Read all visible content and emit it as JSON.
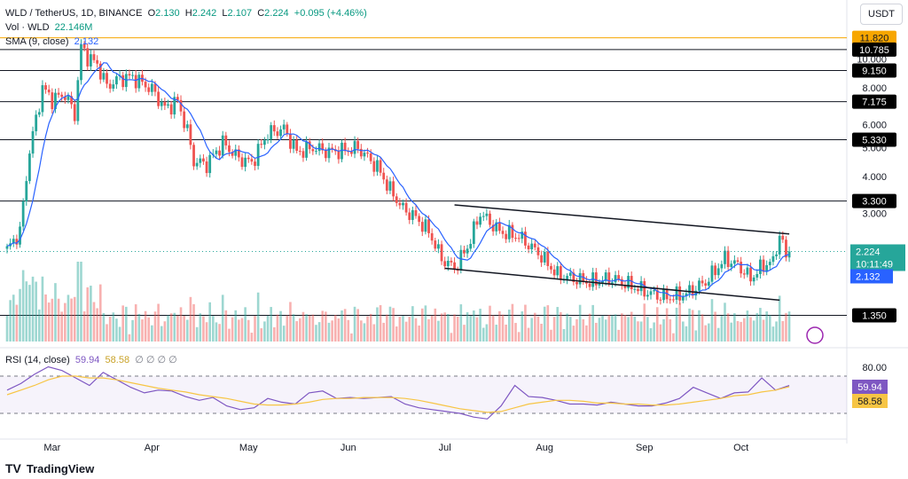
{
  "header": {
    "symbol": "WLD / TetherUS, 1D, BINANCE",
    "open_label": "O",
    "open": "2.130",
    "high_label": "H",
    "high": "2.242",
    "low_label": "L",
    "low": "2.107",
    "close_label": "C",
    "close": "2.224",
    "change": "+0.095 (+4.46%)",
    "vol_label": "Vol · WLD",
    "vol": "22.146M",
    "sma_label": "SMA (9, close)",
    "sma": "2.132",
    "rsi_label": "RSI (14, close)",
    "rsi": "59.94",
    "rsi_ma": "58.58",
    "rsi_extra": "∅ ∅ ∅ ∅"
  },
  "currency_badge": "USDT",
  "footer": {
    "brand": "TradingView"
  },
  "colors": {
    "up": "#26a69a",
    "down": "#ef5350",
    "sma": "#2962ff",
    "rsi": "#7e57c2",
    "rsi_ma": "#f7c544",
    "line": "#131722",
    "orange": "#f7a600"
  },
  "chart_data": [
    {
      "type": "candlestick",
      "title": "WLD / TetherUS, 1D, BINANCE",
      "y_scale": "log",
      "y_ticks": [
        "3.000",
        "4.000",
        "5.000",
        "6.000",
        "8.000",
        "10.000"
      ],
      "x_ticks": [
        "Mar",
        "Apr",
        "May",
        "Jun",
        "Jul",
        "Aug",
        "Sep",
        "Oct"
      ],
      "horizontal_levels": [
        {
          "label": "11.820",
          "value": 11.82,
          "color": "#f7a600"
        },
        {
          "label": "10.785",
          "value": 10.785,
          "color": "#131722"
        },
        {
          "label": "9.150",
          "value": 9.15,
          "color": "#131722"
        },
        {
          "label": "7.175",
          "value": 7.175,
          "color": "#131722"
        },
        {
          "label": "5.330",
          "value": 5.33,
          "color": "#131722"
        },
        {
          "label": "3.300",
          "value": 3.3,
          "color": "#131722"
        },
        {
          "label": "1.350",
          "value": 1.35,
          "color": "#131722"
        }
      ],
      "price_labels": {
        "last": "2.224",
        "countdown": "10:11:49",
        "sma": "2.132"
      },
      "trendlines": [
        {
          "from": [
            "Jul 4",
            3.2
          ],
          "to": [
            "Oct 16",
            2.55
          ]
        },
        {
          "from": [
            "Jul 1",
            1.95
          ],
          "to": [
            "Oct 13",
            1.52
          ]
        }
      ],
      "closes": [
        {
          "date": "Feb 16",
          "close": 2.25
        },
        {
          "date": "Feb 20",
          "close": 2.6
        },
        {
          "date": "Feb 23",
          "close": 4.9
        },
        {
          "date": "Feb 27",
          "close": 8.0
        },
        {
          "date": "Mar 1",
          "close": 7.3
        },
        {
          "date": "Mar 5",
          "close": 7.6
        },
        {
          "date": "Mar 8",
          "close": 6.5
        },
        {
          "date": "Mar 10",
          "close": 11.0
        },
        {
          "date": "Mar 12",
          "close": 10.2
        },
        {
          "date": "Mar 15",
          "close": 9.6
        },
        {
          "date": "Mar 18",
          "close": 8.1
        },
        {
          "date": "Mar 22",
          "close": 8.6
        },
        {
          "date": "Mar 26",
          "close": 8.7
        },
        {
          "date": "Apr 1",
          "close": 7.9
        },
        {
          "date": "Apr 5",
          "close": 6.8
        },
        {
          "date": "Apr 9",
          "close": 7.2
        },
        {
          "date": "Apr 12",
          "close": 5.7
        },
        {
          "date": "Apr 14",
          "close": 4.5
        },
        {
          "date": "Apr 18",
          "close": 4.4
        },
        {
          "date": "Apr 23",
          "close": 5.2
        },
        {
          "date": "Apr 28",
          "close": 4.6
        },
        {
          "date": "May 2",
          "close": 4.45
        },
        {
          "date": "May 7",
          "close": 5.6
        },
        {
          "date": "May 12",
          "close": 5.8
        },
        {
          "date": "May 16",
          "close": 4.85
        },
        {
          "date": "May 21",
          "close": 5.0
        },
        {
          "date": "May 26",
          "close": 4.85
        },
        {
          "date": "May 31",
          "close": 4.9
        },
        {
          "date": "Jun 4",
          "close": 5.0
        },
        {
          "date": "Jun 10",
          "close": 4.3
        },
        {
          "date": "Jun 14",
          "close": 3.6
        },
        {
          "date": "Jun 18",
          "close": 3.1
        },
        {
          "date": "Jun 22",
          "close": 2.9
        },
        {
          "date": "Jun 26",
          "close": 2.6
        },
        {
          "date": "Jun 30",
          "close": 2.1
        },
        {
          "date": "Jul 4",
          "close": 1.95
        },
        {
          "date": "Jul 8",
          "close": 2.3
        },
        {
          "date": "Jul 12",
          "close": 3.0
        },
        {
          "date": "Jul 18",
          "close": 2.6
        },
        {
          "date": "Jul 24",
          "close": 2.5
        },
        {
          "date": "Jul 30",
          "close": 2.2
        },
        {
          "date": "Aug 5",
          "close": 1.85
        },
        {
          "date": "Aug 10",
          "close": 1.8
        },
        {
          "date": "Aug 15",
          "close": 1.75
        },
        {
          "date": "Aug 22",
          "close": 1.8
        },
        {
          "date": "Aug 28",
          "close": 1.7
        },
        {
          "date": "Sep 3",
          "close": 1.6
        },
        {
          "date": "Sep 8",
          "close": 1.55
        },
        {
          "date": "Sep 14",
          "close": 1.6
        },
        {
          "date": "Sep 20",
          "close": 1.75
        },
        {
          "date": "Sep 26",
          "close": 2.1
        },
        {
          "date": "Sep 30",
          "close": 2.0
        },
        {
          "date": "Oct 4",
          "close": 1.8
        },
        {
          "date": "Oct 8",
          "close": 2.0
        },
        {
          "date": "Oct 11",
          "close": 2.05
        },
        {
          "date": "Oct 13",
          "close": 2.55
        },
        {
          "date": "Oct 15",
          "close": 2.13
        },
        {
          "date": "Oct 16",
          "close": 2.224
        }
      ]
    },
    {
      "type": "line",
      "title": "RSI (14, close)",
      "y_ticks": [
        "80.00"
      ],
      "band": [
        30,
        70
      ],
      "series": [
        {
          "name": "RSI",
          "value_label": "59.94",
          "values": [
            55,
            62,
            72,
            80,
            76,
            68,
            60,
            74,
            66,
            58,
            52,
            55,
            54,
            48,
            44,
            47,
            38,
            34,
            36,
            46,
            42,
            40,
            52,
            54,
            46,
            47,
            46,
            47,
            48,
            40,
            36,
            34,
            32,
            30,
            26,
            24,
            38,
            60,
            48,
            47,
            44,
            40,
            40,
            39,
            42,
            40,
            38,
            38,
            41,
            46,
            58,
            52,
            46,
            52,
            53,
            68,
            55,
            59.94
          ]
        },
        {
          "name": "RSI-based MA",
          "value_label": "58.58",
          "values": [
            50,
            55,
            60,
            66,
            70,
            70,
            68,
            68,
            66,
            63,
            60,
            57,
            55,
            53,
            50,
            48,
            46,
            43,
            40,
            39,
            39,
            40,
            42,
            45,
            46,
            46,
            47,
            47,
            47,
            46,
            44,
            41,
            38,
            35,
            33,
            31,
            32,
            36,
            40,
            42,
            44,
            44,
            43,
            41,
            41,
            40,
            40,
            39,
            39,
            40,
            42,
            44,
            46,
            49,
            50,
            53,
            55,
            58.58
          ]
        }
      ]
    }
  ]
}
